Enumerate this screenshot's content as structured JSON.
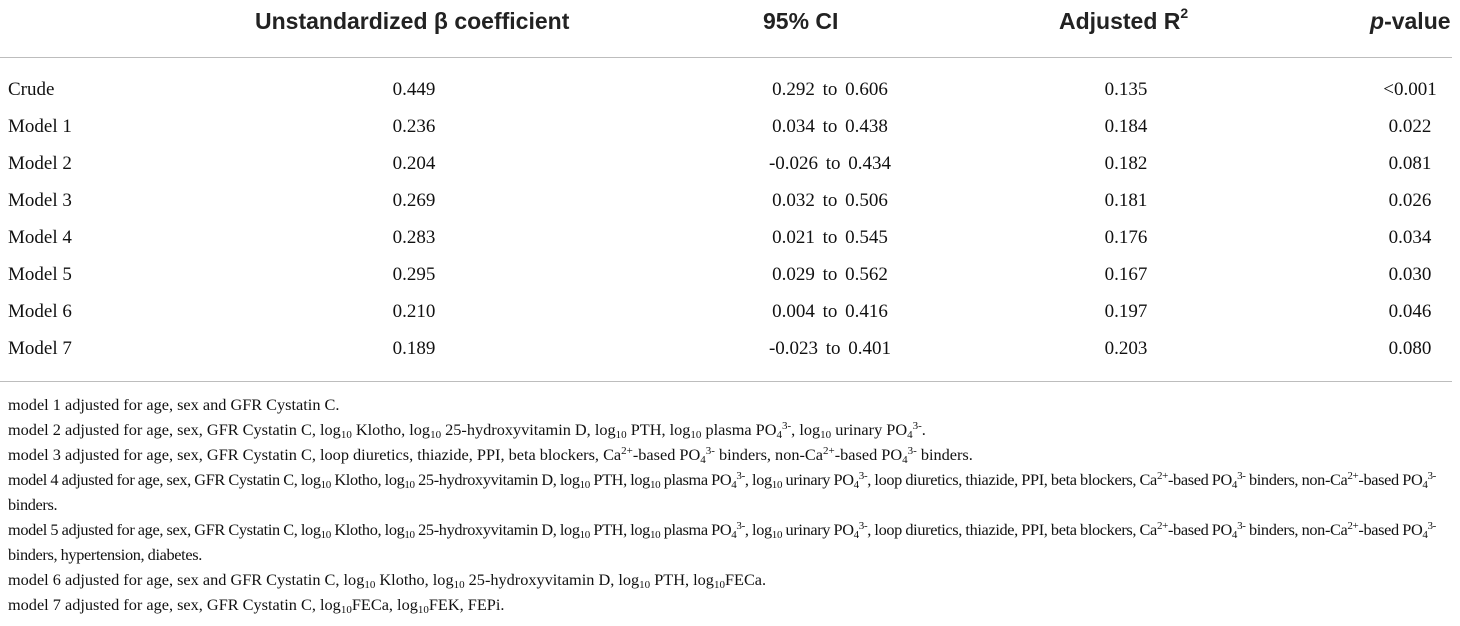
{
  "table": {
    "headers": {
      "beta": "Unstandardized β coefficient",
      "ci": "95% CI",
      "r2_base": "Adjusted R",
      "r2_sup": "2",
      "p_italic": "p",
      "p_rest": "-value"
    },
    "rows": [
      {
        "model": "Crude",
        "beta": "0.449",
        "ci": "0.292 to 0.606",
        "r2": "0.135",
        "p": "<0.001"
      },
      {
        "model": "Model 1",
        "beta": "0.236",
        "ci": "0.034 to 0.438",
        "r2": "0.184",
        "p": "0.022"
      },
      {
        "model": "Model 2",
        "beta": "0.204",
        "ci": "-0.026 to 0.434",
        "r2": "0.182",
        "p": "0.081"
      },
      {
        "model": "Model 3",
        "beta": "0.269",
        "ci": "0.032 to 0.506",
        "r2": "0.181",
        "p": "0.026"
      },
      {
        "model": "Model 4",
        "beta": "0.283",
        "ci": "0.021 to 0.545",
        "r2": "0.176",
        "p": "0.034"
      },
      {
        "model": "Model 5",
        "beta": "0.295",
        "ci": "0.029 to 0.562",
        "r2": "0.167",
        "p": "0.030"
      },
      {
        "model": "Model 6",
        "beta": "0.210",
        "ci": "0.004 to 0.416",
        "r2": "0.197",
        "p": "0.046"
      },
      {
        "model": "Model 7",
        "beta": "0.189",
        "ci": "-0.023 to 0.401",
        "r2": "0.203",
        "p": "0.080"
      }
    ]
  },
  "footnotes": [
    {
      "wrap": false,
      "parts": [
        {
          "t": "model 1 adjusted for age, sex and GFR Cystatin C."
        }
      ]
    },
    {
      "wrap": false,
      "parts": [
        {
          "t": "model 2 adjusted for age, sex, GFR Cystatin C, log"
        },
        {
          "sub": "10"
        },
        {
          "t": " Klotho, log"
        },
        {
          "sub": "10"
        },
        {
          "t": " 25-hydroxyvitamin D, log"
        },
        {
          "sub": "10"
        },
        {
          "t": " PTH, log"
        },
        {
          "sub": "10"
        },
        {
          "t": " plasma PO"
        },
        {
          "sub": "4"
        },
        {
          "sup": "3-"
        },
        {
          "t": ", log"
        },
        {
          "sub": "10"
        },
        {
          "t": " urinary PO"
        },
        {
          "sub": "4"
        },
        {
          "sup": "3-"
        },
        {
          "t": "."
        }
      ]
    },
    {
      "wrap": false,
      "parts": [
        {
          "t": "model 3 adjusted for age, sex, GFR Cystatin C, loop diuretics, thiazide, PPI, beta blockers, Ca"
        },
        {
          "sup": "2+"
        },
        {
          "t": "-based PO"
        },
        {
          "sub": "4"
        },
        {
          "sup": "3-"
        },
        {
          "t": " binders, non-Ca"
        },
        {
          "sup": "2+"
        },
        {
          "t": "-based PO"
        },
        {
          "sub": "4"
        },
        {
          "sup": "3-"
        },
        {
          "t": " binders."
        }
      ]
    },
    {
      "wrap": true,
      "parts": [
        {
          "t": "model 4 adjusted for age, sex, GFR Cystatin C, log"
        },
        {
          "sub": "10"
        },
        {
          "t": " Klotho, log"
        },
        {
          "sub": "10"
        },
        {
          "t": " 25-hydroxyvitamin D, log"
        },
        {
          "sub": "10"
        },
        {
          "t": " PTH, log"
        },
        {
          "sub": "10"
        },
        {
          "t": " plasma PO"
        },
        {
          "sub": "4"
        },
        {
          "sup": "3-"
        },
        {
          "t": ", log"
        },
        {
          "sub": "10"
        },
        {
          "t": " urinary PO"
        },
        {
          "sub": "4"
        },
        {
          "sup": "3-"
        },
        {
          "t": ", loop diuretics, thiazide, PPI, beta blockers, Ca"
        },
        {
          "sup": "2+"
        },
        {
          "t": "-based PO"
        },
        {
          "sub": "4"
        },
        {
          "sup": "3-"
        },
        {
          "t": " binders, non-Ca"
        },
        {
          "sup": "2+"
        },
        {
          "t": "-based PO"
        },
        {
          "sub": "4"
        },
        {
          "sup": "3-"
        },
        {
          "t": " binders."
        }
      ]
    },
    {
      "wrap": true,
      "parts": [
        {
          "t": "model 5 adjusted for age, sex, GFR Cystatin C, log"
        },
        {
          "sub": "10"
        },
        {
          "t": " Klotho, log"
        },
        {
          "sub": "10"
        },
        {
          "t": " 25-hydroxyvitamin D, log"
        },
        {
          "sub": "10"
        },
        {
          "t": " PTH, log"
        },
        {
          "sub": "10"
        },
        {
          "t": " plasma PO"
        },
        {
          "sub": "4"
        },
        {
          "sup": "3-"
        },
        {
          "t": ", log"
        },
        {
          "sub": "10"
        },
        {
          "t": " urinary PO"
        },
        {
          "sub": "4"
        },
        {
          "sup": "3-"
        },
        {
          "t": ", loop diuretics, thiazide, PPI, beta blockers, Ca"
        },
        {
          "sup": "2+"
        },
        {
          "t": "-based PO"
        },
        {
          "sub": "4"
        },
        {
          "sup": "3-"
        },
        {
          "t": " binders, non-Ca"
        },
        {
          "sup": "2+"
        },
        {
          "t": "-based PO"
        },
        {
          "sub": "4"
        },
        {
          "sup": "3-"
        },
        {
          "t": " binders, hypertension, diabetes."
        }
      ]
    },
    {
      "wrap": false,
      "parts": [
        {
          "t": "model 6 adjusted for age, sex and GFR Cystatin C, log"
        },
        {
          "sub": "10"
        },
        {
          "t": " Klotho, log"
        },
        {
          "sub": "10"
        },
        {
          "t": " 25-hydroxyvitamin D, log"
        },
        {
          "sub": "10"
        },
        {
          "t": " PTH, log"
        },
        {
          "sub": "10"
        },
        {
          "t": "FECa."
        }
      ]
    },
    {
      "wrap": false,
      "parts": [
        {
          "t": "model 7 adjusted for age, sex, GFR Cystatin C, log"
        },
        {
          "sub": "10"
        },
        {
          "t": "FECa, log"
        },
        {
          "sub": "10"
        },
        {
          "t": "FEK, FEPi."
        }
      ]
    }
  ]
}
